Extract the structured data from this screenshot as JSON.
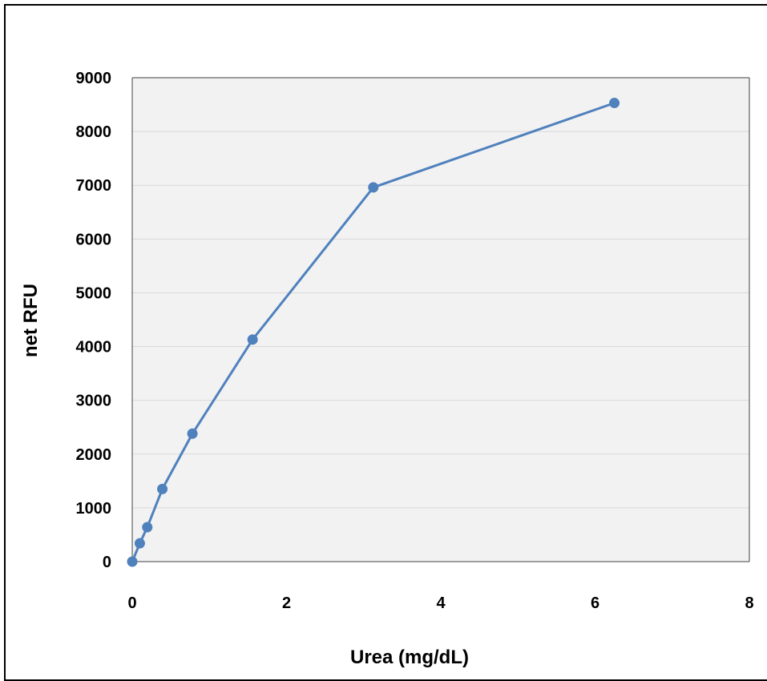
{
  "chart_data": {
    "type": "line",
    "title": "",
    "xlabel": "Urea (mg/dL)",
    "ylabel": "net RFU",
    "xlim": [
      0,
      8
    ],
    "ylim": [
      0,
      9000
    ],
    "x_ticks": [
      "0",
      "2",
      "4",
      "6",
      "8"
    ],
    "y_ticks": [
      "0",
      "1000",
      "2000",
      "3000",
      "4000",
      "5000",
      "6000",
      "7000",
      "8000",
      "9000"
    ],
    "grid": "horizontal",
    "legend": "none",
    "series": [
      {
        "color": "#4f81bd",
        "x": [
          0,
          0.098,
          0.195,
          0.39,
          0.78,
          1.56,
          3.125,
          6.25
        ],
        "y": [
          0,
          340,
          640,
          1350,
          2380,
          4130,
          6960,
          8530
        ]
      }
    ]
  }
}
